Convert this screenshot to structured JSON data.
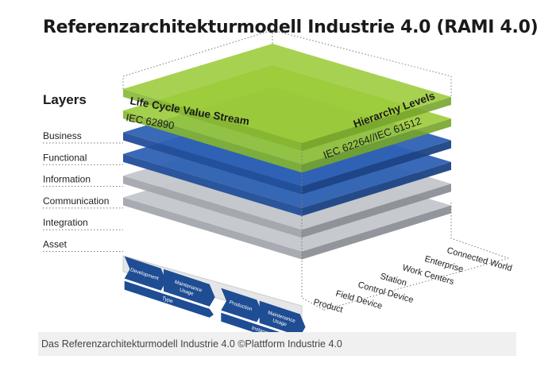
{
  "title": "Referenzarchitekturmodell Industrie 4.0 (RAMI 4.0)",
  "layers_heading": "Layers",
  "layers": [
    "Business",
    "Functional",
    "Information",
    "Communication",
    "Integration",
    "Asset"
  ],
  "life_cycle_axis": {
    "label": "Life Cycle Value Stream",
    "standard": "IEC 62890",
    "segments": [
      {
        "label": "Development"
      },
      {
        "label": "Maintenance\nUsage"
      },
      {
        "label": "Production"
      },
      {
        "label": "Maintenance\nUsage"
      }
    ],
    "groups": [
      "Type",
      "Instance"
    ]
  },
  "hierarchy_axis": {
    "label": "Hierarchy Levels",
    "standard": "IEC 62264//IEC 61512",
    "levels": [
      "Connected World",
      "Enterprise",
      "Work Centers",
      "Station",
      "Control Device",
      "Field Device",
      "Product"
    ]
  },
  "colors": {
    "green_top": "#9ccc3a",
    "green_front": "#86b630",
    "green_side": "#76a52a",
    "blue_top": "#2f62b4",
    "blue_front": "#234f9a",
    "blue_side": "#1d4485",
    "grey_top": "#c4c7cc",
    "grey_front": "#a4a8ae",
    "grey_side": "#8d9197",
    "arrow_blue": "#1f4d93"
  },
  "caption": "Das Referenzarchitekturmodell Industrie 4.0 ©Plattform Industrie 4.0"
}
